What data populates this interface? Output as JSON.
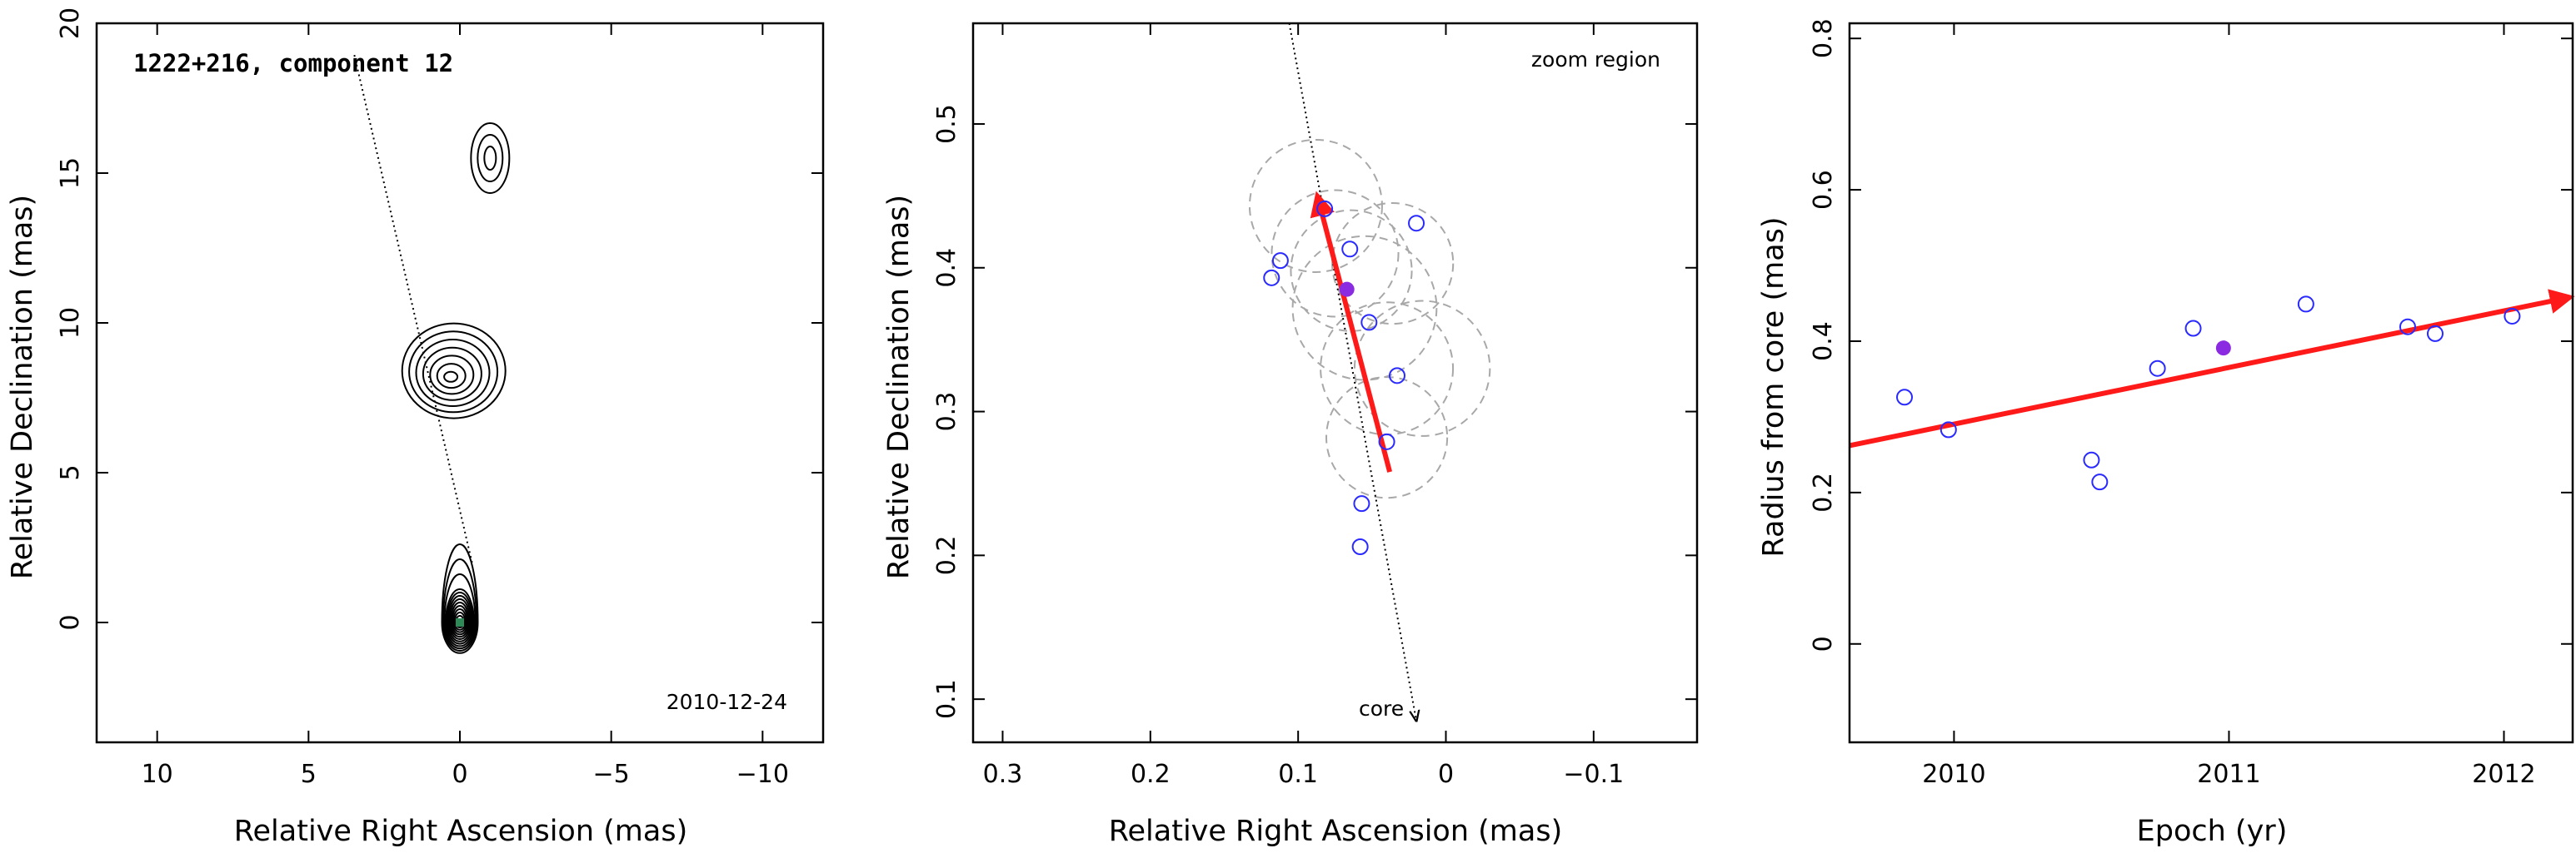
{
  "panels": {
    "map": {
      "title": "1222+216, component 12",
      "date": "2010-12-24",
      "xlabel": "Relative Right Ascension (mas)",
      "ylabel": "Relative Declination (mas)"
    },
    "zoom": {
      "region_label": "zoom region",
      "core_label": "core",
      "xlabel": "Relative Right Ascension (mas)",
      "ylabel": "Relative Declination (mas)"
    },
    "radius": {
      "xlabel": "Epoch (yr)",
      "ylabel": "Radius from core (mas)"
    }
  },
  "colors": {
    "points": "#2a2aff",
    "highlight": "#8a2be2",
    "fit": "#ff1a1a",
    "circles": "#a8a8a8",
    "contours": "#000000",
    "core_marker": "#2e8b57"
  },
  "chart_data": [
    {
      "type": "contour-map",
      "xlim": [
        12,
        -12
      ],
      "ylim": [
        -4,
        20
      ],
      "xticks": [
        10,
        5,
        0,
        -5,
        -10
      ],
      "yticks": [
        0,
        5,
        10,
        15,
        20
      ],
      "xticklabels": [
        "10",
        "5",
        "0",
        "−5",
        "−10"
      ],
      "yticklabels": [
        "0",
        "5",
        "10",
        "15",
        "20"
      ],
      "features": [
        {
          "name": "core",
          "x": 0.0,
          "y": 0.0
        },
        {
          "name": "knot",
          "x": 0.3,
          "y": 8.2
        },
        {
          "name": "northern-knot",
          "x": -1.0,
          "y": 15.5
        }
      ],
      "jet_direction_line": [
        [
          -0.4,
          2.0
        ],
        [
          3.5,
          19.0
        ]
      ]
    },
    {
      "type": "scatter",
      "xlim": [
        0.32,
        -0.17
      ],
      "ylim": [
        0.07,
        0.57
      ],
      "xticks": [
        0.3,
        0.2,
        0.1,
        0,
        -0.1
      ],
      "yticks": [
        0.1,
        0.2,
        0.3,
        0.4,
        0.5
      ],
      "xticklabels": [
        "0.3",
        "0.2",
        "0.1",
        "0",
        "−0.1"
      ],
      "yticklabels": [
        "0.1",
        "0.2",
        "0.3",
        "0.4",
        "0.5"
      ],
      "points": [
        {
          "x": 0.118,
          "y": 0.393
        },
        {
          "x": 0.112,
          "y": 0.405
        },
        {
          "x": 0.082,
          "y": 0.441
        },
        {
          "x": 0.065,
          "y": 0.413
        },
        {
          "x": 0.02,
          "y": 0.431
        },
        {
          "x": 0.052,
          "y": 0.362
        },
        {
          "x": 0.033,
          "y": 0.325
        },
        {
          "x": 0.04,
          "y": 0.279
        },
        {
          "x": 0.057,
          "y": 0.236
        },
        {
          "x": 0.058,
          "y": 0.206
        }
      ],
      "highlight_point": {
        "x": 0.067,
        "y": 0.385
      },
      "uncertainty_circles": [
        {
          "x": 0.088,
          "y": 0.443,
          "r": 0.046
        },
        {
          "x": 0.075,
          "y": 0.41,
          "r": 0.044
        },
        {
          "x": 0.064,
          "y": 0.398,
          "r": 0.042
        },
        {
          "x": 0.036,
          "y": 0.403,
          "r": 0.042
        },
        {
          "x": 0.055,
          "y": 0.372,
          "r": 0.05
        },
        {
          "x": 0.04,
          "y": 0.33,
          "r": 0.046
        },
        {
          "x": 0.016,
          "y": 0.33,
          "r": 0.047
        },
        {
          "x": 0.04,
          "y": 0.282,
          "r": 0.042
        }
      ],
      "motion_vector": {
        "from": [
          0.038,
          0.258
        ],
        "to": [
          0.087,
          0.45
        ]
      },
      "core_line": {
        "from": [
          0.106,
          0.58
        ],
        "to": [
          0.02,
          0.085
        ]
      }
    },
    {
      "type": "scatter",
      "xlim": [
        2009.62,
        2012.25
      ],
      "ylim": [
        -0.13,
        0.82
      ],
      "xticks": [
        2010,
        2011,
        2012
      ],
      "yticks": [
        0,
        0.2,
        0.4,
        0.6,
        0.8
      ],
      "xticklabels": [
        "2010",
        "2011",
        "2012"
      ],
      "yticklabels": [
        "0",
        "0.2",
        "0.4",
        "0.6",
        "0.8"
      ],
      "points": [
        {
          "x": 2009.82,
          "y": 0.326
        },
        {
          "x": 2009.98,
          "y": 0.283
        },
        {
          "x": 2010.5,
          "y": 0.243
        },
        {
          "x": 2010.53,
          "y": 0.214
        },
        {
          "x": 2010.74,
          "y": 0.364
        },
        {
          "x": 2010.87,
          "y": 0.417
        },
        {
          "x": 2011.28,
          "y": 0.449
        },
        {
          "x": 2011.65,
          "y": 0.419
        },
        {
          "x": 2011.75,
          "y": 0.41
        },
        {
          "x": 2012.03,
          "y": 0.433
        }
      ],
      "highlight_point": {
        "x": 2010.98,
        "y": 0.391
      },
      "fit_line": {
        "from": [
          2009.62,
          0.262
        ],
        "to": [
          2012.24,
          0.458
        ]
      }
    }
  ]
}
